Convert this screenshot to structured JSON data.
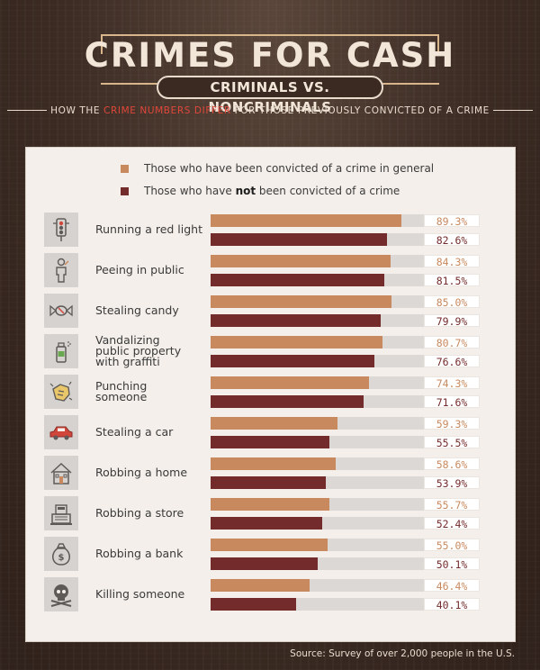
{
  "header": {
    "title": "CRIMES FOR CASH",
    "subtitle": "CRIMINALS VS. NONCRIMINALS",
    "tagline_pre": "HOW THE ",
    "tagline_highlight": "CRIME NUMBERS DIFFER",
    "tagline_post": " FOR THOSE PREVIOUSLY CONVICTED OF A CRIME"
  },
  "colors": {
    "convicted": "#c8895e",
    "not_convicted": "#742b2b",
    "highlight": "#e0463a"
  },
  "legend": [
    {
      "pre": "Those who have been convicted of a crime in general",
      "bold": "",
      "post": ""
    },
    {
      "pre": "Those who have ",
      "bold": "not",
      "post": " been convicted of a crime"
    }
  ],
  "source": "Source: Survey of over 2,000 people in the U.S.",
  "chart_data": {
    "type": "bar",
    "orientation": "horizontal",
    "categories": [
      [
        "Running a red light"
      ],
      [
        "Peeing in public"
      ],
      [
        "Stealing candy"
      ],
      [
        "Vandalizing",
        "public property",
        "with graffiti"
      ],
      [
        "Punching",
        "someone"
      ],
      [
        "Stealing a car"
      ],
      [
        "Robbing a home"
      ],
      [
        "Robbing a store"
      ],
      [
        "Robbing a bank"
      ],
      [
        "Killing someone"
      ]
    ],
    "icons": [
      "traffic-light-icon",
      "person-icon",
      "candy-icon",
      "spray-can-icon",
      "fist-icon",
      "car-icon",
      "house-icon",
      "cash-register-icon",
      "money-bag-icon",
      "skull-icon"
    ],
    "series": [
      {
        "name": "Those who have been convicted of a crime in general",
        "values": [
          89.3,
          84.3,
          85.0,
          80.7,
          74.3,
          59.3,
          58.6,
          55.7,
          55.0,
          46.4
        ],
        "labels": [
          "89.3%",
          "84.3%",
          "85.0%",
          "80.7%",
          "74.3%",
          "59.3%",
          "58.6%",
          "55.7%",
          "55.0%",
          "46.4%"
        ]
      },
      {
        "name": "Those who have not been convicted of a crime",
        "values": [
          82.6,
          81.5,
          79.9,
          76.6,
          71.6,
          55.5,
          53.9,
          52.4,
          50.1,
          40.1
        ],
        "labels": [
          "82.6%",
          "81.5%",
          "79.9%",
          "76.6%",
          "71.6%",
          "55.5%",
          "53.9%",
          "52.4%",
          "50.1%",
          "40.1%"
        ]
      }
    ],
    "xlim": [
      0,
      100
    ]
  }
}
